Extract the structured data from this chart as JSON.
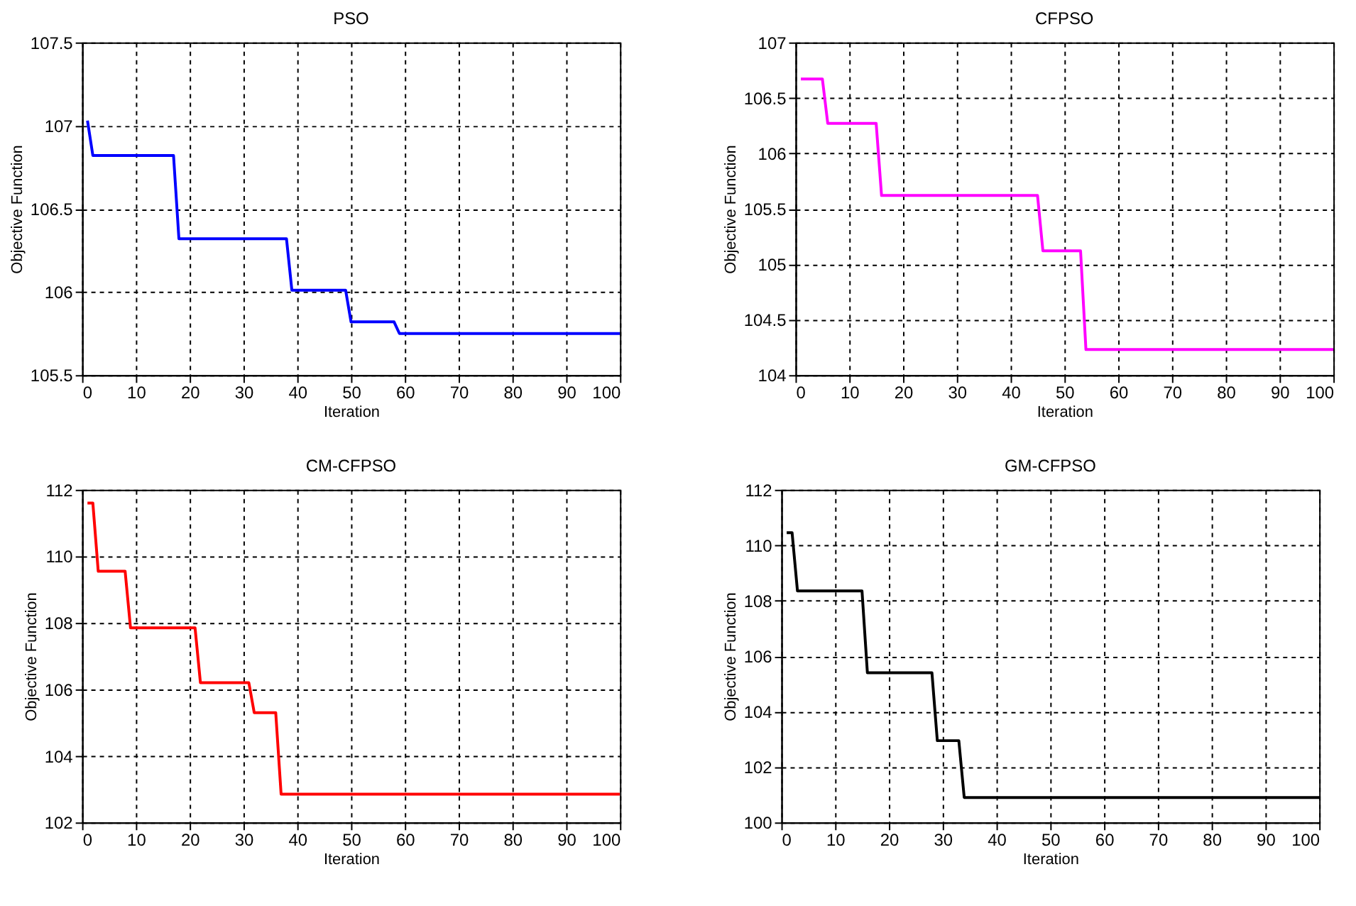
{
  "chart_data": [
    {
      "type": "line",
      "title": "PSO",
      "xlabel": "Iteration",
      "ylabel": "Objective Function",
      "grid": true,
      "x": [
        1,
        2,
        17,
        18,
        38,
        39,
        49,
        50,
        58,
        59,
        100
      ],
      "series": [
        {
          "color": "#0000ff",
          "values": [
            107.03,
            106.82,
            106.82,
            106.32,
            106.32,
            106.01,
            106.01,
            105.82,
            105.82,
            105.75,
            105.75
          ]
        }
      ],
      "xlim": [
        0,
        100
      ],
      "xticks": [
        0,
        10,
        20,
        30,
        40,
        50,
        60,
        70,
        80,
        90,
        100
      ],
      "ylim": [
        105.5,
        107.5
      ],
      "yticks": [
        105.5,
        106,
        106.5,
        107,
        107.5
      ]
    },
    {
      "type": "line",
      "title": "CFPSO",
      "xlabel": "Iteration",
      "ylabel": "Objective Function",
      "grid": true,
      "x": [
        1,
        5,
        6,
        15,
        16,
        45,
        46,
        53,
        54,
        100
      ],
      "series": [
        {
          "color": "#ff00ff",
          "values": [
            106.67,
            106.67,
            106.27,
            106.27,
            105.62,
            105.62,
            105.12,
            105.12,
            104.23,
            104.23
          ]
        }
      ],
      "xlim": [
        0,
        100
      ],
      "xticks": [
        0,
        10,
        20,
        30,
        40,
        50,
        60,
        70,
        80,
        90,
        100
      ],
      "ylim": [
        104,
        107
      ],
      "yticks": [
        104,
        104.5,
        105,
        105.5,
        106,
        106.5,
        107
      ]
    },
    {
      "type": "line",
      "title": "CM-CFPSO",
      "xlabel": "Iteration",
      "ylabel": "Objective Function",
      "grid": true,
      "x": [
        1,
        2,
        3,
        8,
        9,
        21,
        22,
        31,
        32,
        36,
        37,
        100
      ],
      "series": [
        {
          "color": "#ff0000",
          "values": [
            111.6,
            111.6,
            109.55,
            109.55,
            107.85,
            107.85,
            106.2,
            106.2,
            105.3,
            105.3,
            102.85,
            102.85
          ]
        }
      ],
      "xlim": [
        0,
        100
      ],
      "xticks": [
        0,
        10,
        20,
        30,
        40,
        50,
        60,
        70,
        80,
        90,
        100
      ],
      "ylim": [
        102,
        112
      ],
      "yticks": [
        102,
        104,
        106,
        108,
        110,
        112
      ]
    },
    {
      "type": "line",
      "title": "GM-CFPSO",
      "xlabel": "Iteration",
      "ylabel": "Objective Function",
      "grid": true,
      "x": [
        1,
        2,
        3,
        15,
        16,
        28,
        29,
        33,
        34,
        100
      ],
      "series": [
        {
          "color": "#000000",
          "values": [
            110.45,
            110.45,
            108.35,
            108.35,
            105.4,
            105.4,
            102.95,
            102.95,
            100.9,
            100.9
          ]
        }
      ],
      "xlim": [
        0,
        100
      ],
      "xticks": [
        0,
        10,
        20,
        30,
        40,
        50,
        60,
        70,
        80,
        90,
        100
      ],
      "ylim": [
        100,
        112
      ],
      "yticks": [
        100,
        102,
        104,
        106,
        108,
        110,
        112
      ]
    }
  ]
}
